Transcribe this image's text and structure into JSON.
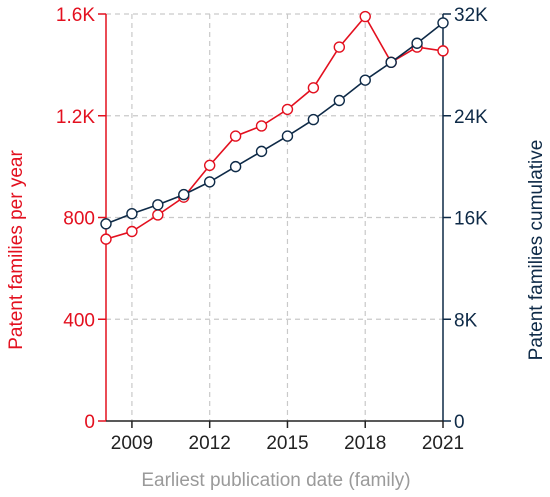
{
  "colors": {
    "left_series": "#e3101f",
    "right_series": "#0e2a47",
    "grid": "#c9c9c9",
    "x_axis_title": "#9a9a9a",
    "x_ticks": "#222222"
  },
  "chart_data": {
    "type": "line",
    "dual_axis": true,
    "title": "",
    "xlabel": "Earliest publication date (family)",
    "ylabel_left": "Patent families per year",
    "ylabel_right": "Patent families cumulative",
    "xlim": [
      2008,
      2021
    ],
    "ylim_left": [
      0,
      1600
    ],
    "ylim_right": [
      0,
      32000
    ],
    "x_ticks": [
      "2009",
      "2012",
      "2015",
      "2018",
      "2021"
    ],
    "x_tick_values": [
      2009,
      2012,
      2015,
      2018,
      2021
    ],
    "y_ticks_left": [
      "0",
      "400",
      "800",
      "1.2K",
      "1.6K"
    ],
    "y_tick_values_left": [
      0,
      400,
      800,
      1200,
      1600
    ],
    "y_ticks_right": [
      "0",
      "8K",
      "16K",
      "24K",
      "32K"
    ],
    "y_tick_values_right": [
      0,
      8000,
      16000,
      24000,
      32000
    ],
    "grid": true,
    "x": [
      2008,
      2009,
      2010,
      2011,
      2012,
      2013,
      2014,
      2015,
      2016,
      2017,
      2018,
      2019,
      2020,
      2021
    ],
    "series": [
      {
        "axis": "left",
        "values": [
          715,
          745,
          810,
          880,
          1005,
          1120,
          1160,
          1225,
          1310,
          1470,
          1590,
          1410,
          1470,
          1455
        ]
      },
      {
        "axis": "right",
        "values": [
          15500,
          16300,
          17000,
          17800,
          18800,
          20000,
          21200,
          22400,
          23700,
          25200,
          26800,
          28200,
          29700,
          31300
        ]
      }
    ]
  }
}
